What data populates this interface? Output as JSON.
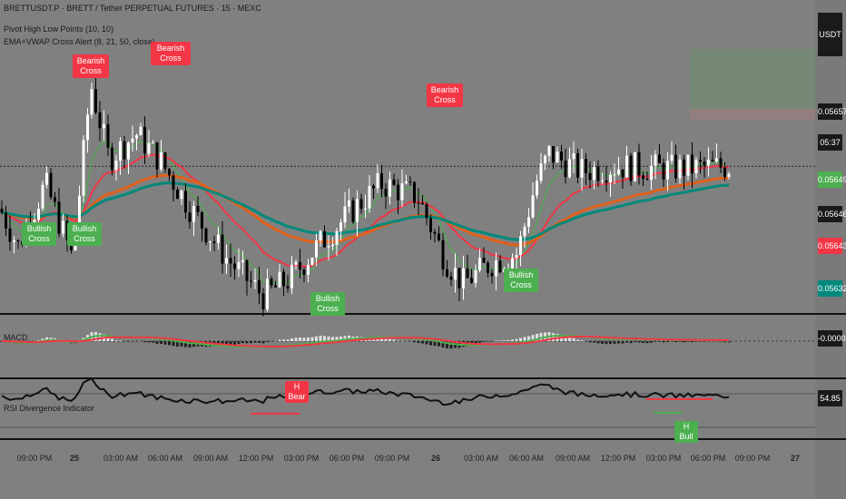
{
  "chart_data": {
    "type": "candlestick",
    "symbol_line": "BRETTUSDT.P · BRETT / Tether PERPETUAL FUTURES · 15 · MEXC",
    "indicators": [
      "Pivot High Low Points (10, 10)",
      "EMA+VWAP Cross Alert (8, 21, 50, close)"
    ],
    "currency": "USDT",
    "price_labels": [
      {
        "value": "0.05657",
        "color": "#1a1a1a"
      },
      {
        "value": "05:37",
        "color": "#1a1a1a"
      },
      {
        "value": "0.05649",
        "color": "#4caf50"
      },
      {
        "value": "0.05646",
        "color": "#1a1a1a"
      },
      {
        "value": "0.05643",
        "color": "#f23645"
      },
      {
        "value": "0.05632",
        "color": "#00897b"
      }
    ],
    "current_price": 0.05657,
    "ema_fast": 0.05649,
    "ema_mid": 0.05643,
    "vwap": 0.05632,
    "annotations": [
      {
        "text": "Bearish Cross",
        "type": "bear"
      },
      {
        "text": "Bearish Cross",
        "type": "bear"
      },
      {
        "text": "Bearish Cross",
        "type": "bear"
      },
      {
        "text": "Bullish Cross",
        "type": "bull"
      },
      {
        "text": "Bullish Cross",
        "type": "bull"
      },
      {
        "text": "Bullish Cross",
        "type": "bull"
      },
      {
        "text": "Bullish Cross",
        "type": "bull"
      }
    ],
    "macd": {
      "label": "MACD",
      "value": "-0.00002"
    },
    "rsi": {
      "label": "RSI Divergence Indicator",
      "value": "54.85",
      "tags": [
        {
          "text": "H Bear",
          "type": "bear"
        },
        {
          "text": "H Bull",
          "type": "bull"
        }
      ]
    },
    "x_tick_labels": [
      "09:00 PM",
      "25",
      "03:00 AM",
      "06:00 AM",
      "09:00 AM",
      "12:00 PM",
      "03:00 PM",
      "06:00 PM",
      "09:00 PM",
      "26",
      "03:00 AM",
      "06:00 AM",
      "09:00 AM",
      "12:00 PM",
      "03:00 PM",
      "06:00 PM",
      "09:00 PM",
      "27"
    ],
    "colors": {
      "background": "#808080",
      "bull_candle": "#ffffff",
      "bear_candle": "#000000",
      "ema_fast": "#4caf50",
      "ema_mid": "#f23645",
      "ema_slow": "#e0601a",
      "vwap": "#00897b"
    }
  }
}
